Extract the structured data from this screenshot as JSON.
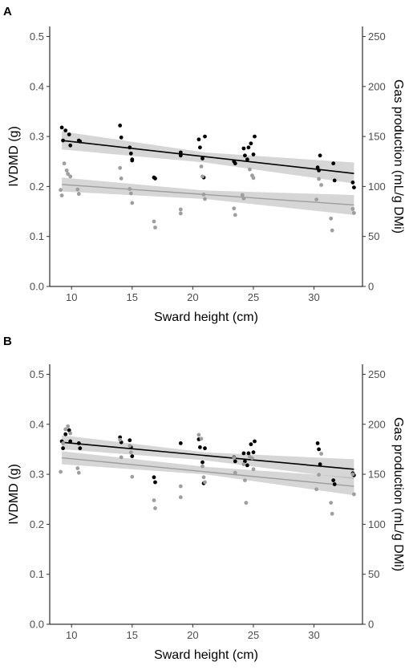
{
  "chart_data": [
    {
      "type": "scatter",
      "panel_label": "A",
      "xlabel": "Sward height (cm)",
      "ylabel": "IVDMD (g)",
      "y2label": "Gas production (mL/g DMi)",
      "xlim": [
        8.2,
        34
      ],
      "ylim": [
        0,
        0.52
      ],
      "y2lim": [
        0,
        260
      ],
      "x_ticks": [
        10,
        15,
        20,
        25,
        30
      ],
      "y_ticks": [
        0.0,
        0.1,
        0.2,
        0.3,
        0.4,
        0.5
      ],
      "y_tick_labels": [
        "0.0",
        "0.1",
        "0.2",
        "0.3",
        "0.4",
        "0.5"
      ],
      "y2_ticks": [
        0,
        50,
        100,
        150,
        200,
        250
      ],
      "y2_tick_labels": [
        "0",
        "50",
        "100",
        "150",
        "200",
        "250"
      ],
      "grid": false,
      "series": [
        {
          "axis": "right",
          "color": "#000000",
          "points": [
            [
              9.2,
              159
            ],
            [
              9.3,
              146
            ],
            [
              9.5,
              156
            ],
            [
              9.8,
              152
            ],
            [
              9.9,
              141
            ],
            [
              10.6,
              146
            ],
            [
              10.7,
              145
            ],
            [
              14,
              161
            ],
            [
              14.1,
              149
            ],
            [
              14.8,
              139
            ],
            [
              14.9,
              133
            ],
            [
              15,
              127
            ],
            [
              15,
              126
            ],
            [
              16.8,
              109
            ],
            [
              16.9,
              108
            ],
            [
              19,
              134
            ],
            [
              19,
              131
            ],
            [
              20.5,
              147
            ],
            [
              20.6,
              139
            ],
            [
              20.8,
              128
            ],
            [
              20.9,
              109
            ],
            [
              21,
              150
            ],
            [
              23.4,
              125
            ],
            [
              23.5,
              123
            ],
            [
              24.2,
              138
            ],
            [
              24.3,
              131
            ],
            [
              24.5,
              127
            ],
            [
              24.6,
              139
            ],
            [
              24.8,
              143
            ],
            [
              25,
              132
            ],
            [
              25.1,
              150
            ],
            [
              30.3,
              119
            ],
            [
              30.4,
              116
            ],
            [
              30.5,
              131
            ],
            [
              31.6,
              123
            ],
            [
              31.7,
              106
            ],
            [
              33.2,
              104
            ],
            [
              33.3,
              99
            ]
          ],
          "fit": {
            "x": [
              9.2,
              33.3
            ],
            "y": [
              146,
              113
            ]
          },
          "band": {
            "x": [
              9.2,
              21,
              33.3
            ],
            "lower": [
              137,
              124,
              103
            ],
            "upper": [
              155,
              134,
              124
            ]
          }
        },
        {
          "axis": "left",
          "color": "#9e9e9e",
          "points": [
            [
              9.1,
              0.193
            ],
            [
              9.2,
              0.182
            ],
            [
              9.4,
              0.246
            ],
            [
              9.6,
              0.232
            ],
            [
              9.7,
              0.225
            ],
            [
              9.9,
              0.22
            ],
            [
              10.5,
              0.194
            ],
            [
              10.6,
              0.185
            ],
            [
              14,
              0.237
            ],
            [
              14.1,
              0.216
            ],
            [
              14.8,
              0.195
            ],
            [
              14.9,
              0.186
            ],
            [
              15,
              0.167
            ],
            [
              16.8,
              0.13
            ],
            [
              16.9,
              0.118
            ],
            [
              19,
              0.154
            ],
            [
              19,
              0.146
            ],
            [
              20.7,
              0.24
            ],
            [
              20.8,
              0.22
            ],
            [
              20.9,
              0.184
            ],
            [
              21,
              0.175
            ],
            [
              23.4,
              0.156
            ],
            [
              23.5,
              0.143
            ],
            [
              24.1,
              0.183
            ],
            [
              24.2,
              0.176
            ],
            [
              24.7,
              0.234
            ],
            [
              24.9,
              0.222
            ],
            [
              25,
              0.217
            ],
            [
              30.2,
              0.174
            ],
            [
              30.4,
              0.215
            ],
            [
              30.6,
              0.203
            ],
            [
              31.4,
              0.136
            ],
            [
              31.5,
              0.112
            ],
            [
              33.2,
              0.155
            ],
            [
              33.3,
              0.147
            ]
          ],
          "fit": {
            "x": [
              9.2,
              33.3
            ],
            "y": [
              0.204,
              0.163
            ]
          },
          "band": {
            "x": [
              9.2,
              21,
              33.3
            ],
            "lower": [
              0.19,
              0.175,
              0.143
            ],
            "upper": [
              0.218,
              0.192,
              0.183
            ]
          }
        }
      ]
    },
    {
      "type": "scatter",
      "panel_label": "B",
      "xlabel": "Sward height (cm)",
      "ylabel": "IVDMD (g)",
      "y2label": "Gas production (mL/g DMi)",
      "xlim": [
        8.2,
        34
      ],
      "ylim": [
        0,
        0.52
      ],
      "y2lim": [
        0,
        260
      ],
      "x_ticks": [
        10,
        15,
        20,
        25,
        30
      ],
      "y_ticks": [
        0.0,
        0.1,
        0.2,
        0.3,
        0.4,
        0.5
      ],
      "y_tick_labels": [
        "0.0",
        "0.1",
        "0.2",
        "0.3",
        "0.4",
        "0.5"
      ],
      "y2_ticks": [
        0,
        50,
        100,
        150,
        200,
        250
      ],
      "y2_tick_labels": [
        "0",
        "50",
        "100",
        "150",
        "200",
        "250"
      ],
      "grid": false,
      "series": [
        {
          "axis": "right",
          "color": "#000000",
          "points": [
            [
              9.2,
              183
            ],
            [
              9.3,
              176
            ],
            [
              9.5,
              190
            ],
            [
              9.8,
              194
            ],
            [
              9.9,
              183
            ],
            [
              10.6,
              181
            ],
            [
              10.7,
              176
            ],
            [
              14,
              187
            ],
            [
              14.1,
              182
            ],
            [
              14.8,
              184
            ],
            [
              14.9,
              177
            ],
            [
              15,
              168
            ],
            [
              16.8,
              147
            ],
            [
              16.9,
              142
            ],
            [
              19,
              181
            ],
            [
              20.5,
              185
            ],
            [
              20.6,
              177
            ],
            [
              20.8,
              162
            ],
            [
              20.9,
              141
            ],
            [
              21,
              176
            ],
            [
              23.4,
              167
            ],
            [
              23.5,
              163
            ],
            [
              24.2,
              171
            ],
            [
              24.3,
              163
            ],
            [
              24.5,
              159
            ],
            [
              24.6,
              171
            ],
            [
              24.8,
              180
            ],
            [
              25,
              172
            ],
            [
              25.1,
              183
            ],
            [
              30.3,
              181
            ],
            [
              30.4,
              175
            ],
            [
              30.5,
              160
            ],
            [
              31.6,
              144
            ],
            [
              31.7,
              140
            ],
            [
              33.2,
              151
            ],
            [
              33.3,
              149
            ]
          ],
          "fit": {
            "x": [
              9.2,
              33.3
            ],
            "y": [
              182,
              155
            ]
          },
          "band": {
            "x": [
              9.2,
              21,
              33.3
            ],
            "lower": [
              175,
              164,
              145
            ],
            "upper": [
              189,
              172,
              165
            ]
          }
        },
        {
          "axis": "left",
          "color": "#9e9e9e",
          "points": [
            [
              9.1,
              0.305
            ],
            [
              9.3,
              0.362
            ],
            [
              9.5,
              0.39
            ],
            [
              9.7,
              0.396
            ],
            [
              9.9,
              0.382
            ],
            [
              10.5,
              0.312
            ],
            [
              10.6,
              0.303
            ],
            [
              14,
              0.369
            ],
            [
              14.1,
              0.334
            ],
            [
              14.8,
              0.357
            ],
            [
              14.9,
              0.344
            ],
            [
              15,
              0.295
            ],
            [
              16.8,
              0.248
            ],
            [
              16.9,
              0.232
            ],
            [
              19,
              0.276
            ],
            [
              19,
              0.254
            ],
            [
              20.5,
              0.379
            ],
            [
              20.7,
              0.371
            ],
            [
              20.8,
              0.316
            ],
            [
              20.9,
              0.294
            ],
            [
              21,
              0.284
            ],
            [
              23.4,
              0.333
            ],
            [
              23.5,
              0.303
            ],
            [
              24.2,
              0.32
            ],
            [
              24.3,
              0.288
            ],
            [
              24.4,
              0.243
            ],
            [
              24.7,
              0.335
            ],
            [
              24.9,
              0.332
            ],
            [
              25,
              0.31
            ],
            [
              30.2,
              0.27
            ],
            [
              30.4,
              0.299
            ],
            [
              30.6,
              0.341
            ],
            [
              31.4,
              0.243
            ],
            [
              31.5,
              0.221
            ],
            [
              33.2,
              0.3
            ],
            [
              33.3,
              0.26
            ]
          ],
          "fit": {
            "x": [
              9.2,
              33.3
            ],
            "y": [
              0.333,
              0.276
            ]
          },
          "band": {
            "x": [
              9.2,
              21,
              33.3
            ],
            "lower": [
              0.32,
              0.3,
              0.258
            ],
            "upper": [
              0.346,
              0.315,
              0.294
            ]
          }
        }
      ]
    }
  ]
}
